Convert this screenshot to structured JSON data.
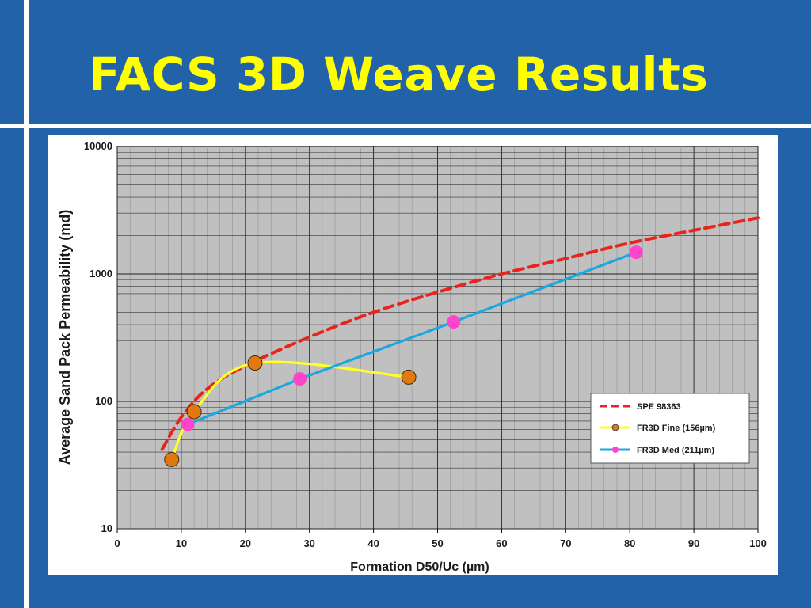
{
  "slide": {
    "title": "FACS 3D Weave Results",
    "background_color": "#2162a8",
    "title_color": "#ffff00"
  },
  "chart_data": {
    "type": "line",
    "xlabel": "Formation D50/Uc (µm)",
    "ylabel": "Average Sand Pack Permeability (md)",
    "xlim": [
      0,
      100
    ],
    "ylim": [
      10,
      10000
    ],
    "y_scale": "log",
    "x_ticks": [
      "0",
      "10",
      "20",
      "30",
      "40",
      "50",
      "60",
      "70",
      "80",
      "90",
      "100"
    ],
    "y_ticks": [
      "10",
      "100",
      "1000",
      "10000"
    ],
    "grid": true,
    "plot_background": "#c0c0c0",
    "legend_position": "bottom-right",
    "series": [
      {
        "name": "SPE 98363",
        "color": "#e8241c",
        "style": "dashed",
        "marker": "none",
        "x": [
          7,
          10,
          14,
          20,
          30,
          40,
          50,
          60,
          70,
          80,
          90,
          100
        ],
        "y": [
          42,
          75,
          125,
          190,
          320,
          500,
          720,
          1000,
          1320,
          1750,
          2200,
          2750
        ]
      },
      {
        "name": "FR3D Fine (156µm)",
        "color": "#ffff2a",
        "marker_color": "#e07a10",
        "style": "solid",
        "marker": "circle",
        "x": [
          8.5,
          12,
          21.5,
          45.5
        ],
        "y": [
          35,
          83,
          200,
          155
        ]
      },
      {
        "name": "FR3D Med (211µm)",
        "color": "#1ba8e0",
        "marker_color": "#ff44cc",
        "style": "solid",
        "marker": "circle",
        "x": [
          11,
          28.5,
          52.5,
          81
        ],
        "y": [
          66,
          150,
          420,
          1480
        ]
      }
    ]
  }
}
